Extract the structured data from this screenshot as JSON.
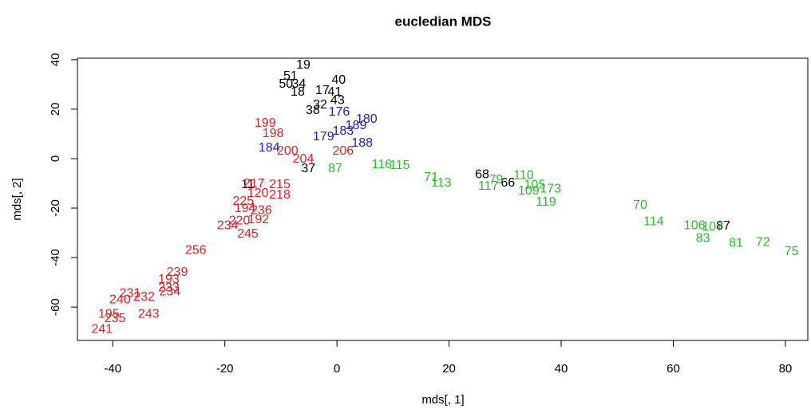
{
  "chart_data": {
    "type": "scatter",
    "title": "eucledian MDS",
    "x_label": "mds[, 1]",
    "y_label": "mds[, 2]",
    "xlim": [
      -46.3,
      84.0
    ],
    "ylim": [
      -73.5,
      40.6
    ],
    "xticks": [
      -40,
      -20,
      0,
      20,
      40,
      60,
      80
    ],
    "yticks": [
      -60,
      -40,
      -20,
      0,
      20,
      40
    ],
    "series": [
      {
        "color": "#000000",
        "labels": [
          "19",
          "51",
          "50",
          "34",
          "18",
          "40",
          "17",
          "41",
          "43",
          "32",
          "38",
          "68",
          "66",
          "87",
          "37",
          "11"
        ],
        "x": [
          -6.0,
          -8.3,
          -9.1,
          -6.8,
          -7.0,
          0.3,
          -2.6,
          -0.4,
          0.1,
          -3.0,
          -4.3,
          25.9,
          30.5,
          68.9,
          -5.1,
          -15.9
        ],
        "values": [
          37.7,
          33.2,
          30.0,
          30.0,
          26.8,
          31.6,
          27.4,
          26.8,
          23.5,
          21.6,
          19.4,
          -6.5,
          -10.0,
          -27.4,
          -4.2,
          -10.6
        ]
      },
      {
        "color": "#e02020",
        "labels": [
          "199",
          "198",
          "200",
          "204",
          "206",
          "217",
          "215",
          "120",
          "218",
          "225",
          "194",
          "236",
          "220",
          "192",
          "234",
          "245",
          "256",
          "239",
          "193",
          "233",
          "234",
          "231",
          "232",
          "240",
          "195",
          "235",
          "243",
          "241"
        ],
        "x": [
          -12.8,
          -11.4,
          -8.8,
          -6.0,
          1.1,
          -14.8,
          -10.2,
          -14.1,
          -10.2,
          -16.7,
          -16.4,
          -13.5,
          -17.4,
          -14.0,
          -19.5,
          -15.9,
          -25.2,
          -28.5,
          -30.0,
          -30.0,
          -29.8,
          -36.9,
          -34.4,
          -38.7,
          -40.7,
          -39.6,
          -33.6,
          -41.9
        ],
        "values": [
          14.2,
          10.0,
          2.9,
          -0.3,
          2.9,
          -10.3,
          -10.6,
          -14.2,
          -14.8,
          -17.4,
          -20.3,
          -21.0,
          -25.2,
          -24.8,
          -27.1,
          -30.6,
          -37.1,
          -46.1,
          -49.0,
          -52.3,
          -53.9,
          -54.5,
          -56.1,
          -57.1,
          -62.9,
          -64.8,
          -62.9,
          -69.0
        ]
      },
      {
        "color": "#2020d0",
        "labels": [
          "176",
          "180",
          "189",
          "183",
          "179",
          "184",
          "188"
        ],
        "x": [
          0.4,
          5.3,
          3.4,
          1.1,
          -2.4,
          -12.1,
          4.5
        ],
        "values": [
          18.7,
          15.8,
          13.2,
          11.0,
          8.7,
          4.2,
          6.2
        ]
      },
      {
        "color": "#22c022",
        "labels": [
          "87",
          "116",
          "115",
          "71",
          "113",
          "117",
          "79",
          "110",
          "109",
          "105",
          "173",
          "119",
          "70",
          "114",
          "106",
          "107",
          "83",
          "81",
          "72",
          "75"
        ],
        "x": [
          -0.3,
          8.0,
          11.2,
          16.8,
          18.6,
          27.0,
          28.4,
          33.3,
          34.2,
          35.3,
          38.1,
          37.3,
          54.1,
          56.5,
          63.8,
          67.0,
          65.3,
          71.2,
          76.0,
          81.1
        ],
        "values": [
          -4.2,
          -2.6,
          -2.9,
          -7.7,
          -10.0,
          -11.3,
          -8.7,
          -6.8,
          -13.2,
          -10.7,
          -12.3,
          -17.7,
          -19.0,
          -25.5,
          -27.1,
          -27.7,
          -32.3,
          -34.2,
          -33.9,
          -37.7
        ]
      }
    ]
  }
}
